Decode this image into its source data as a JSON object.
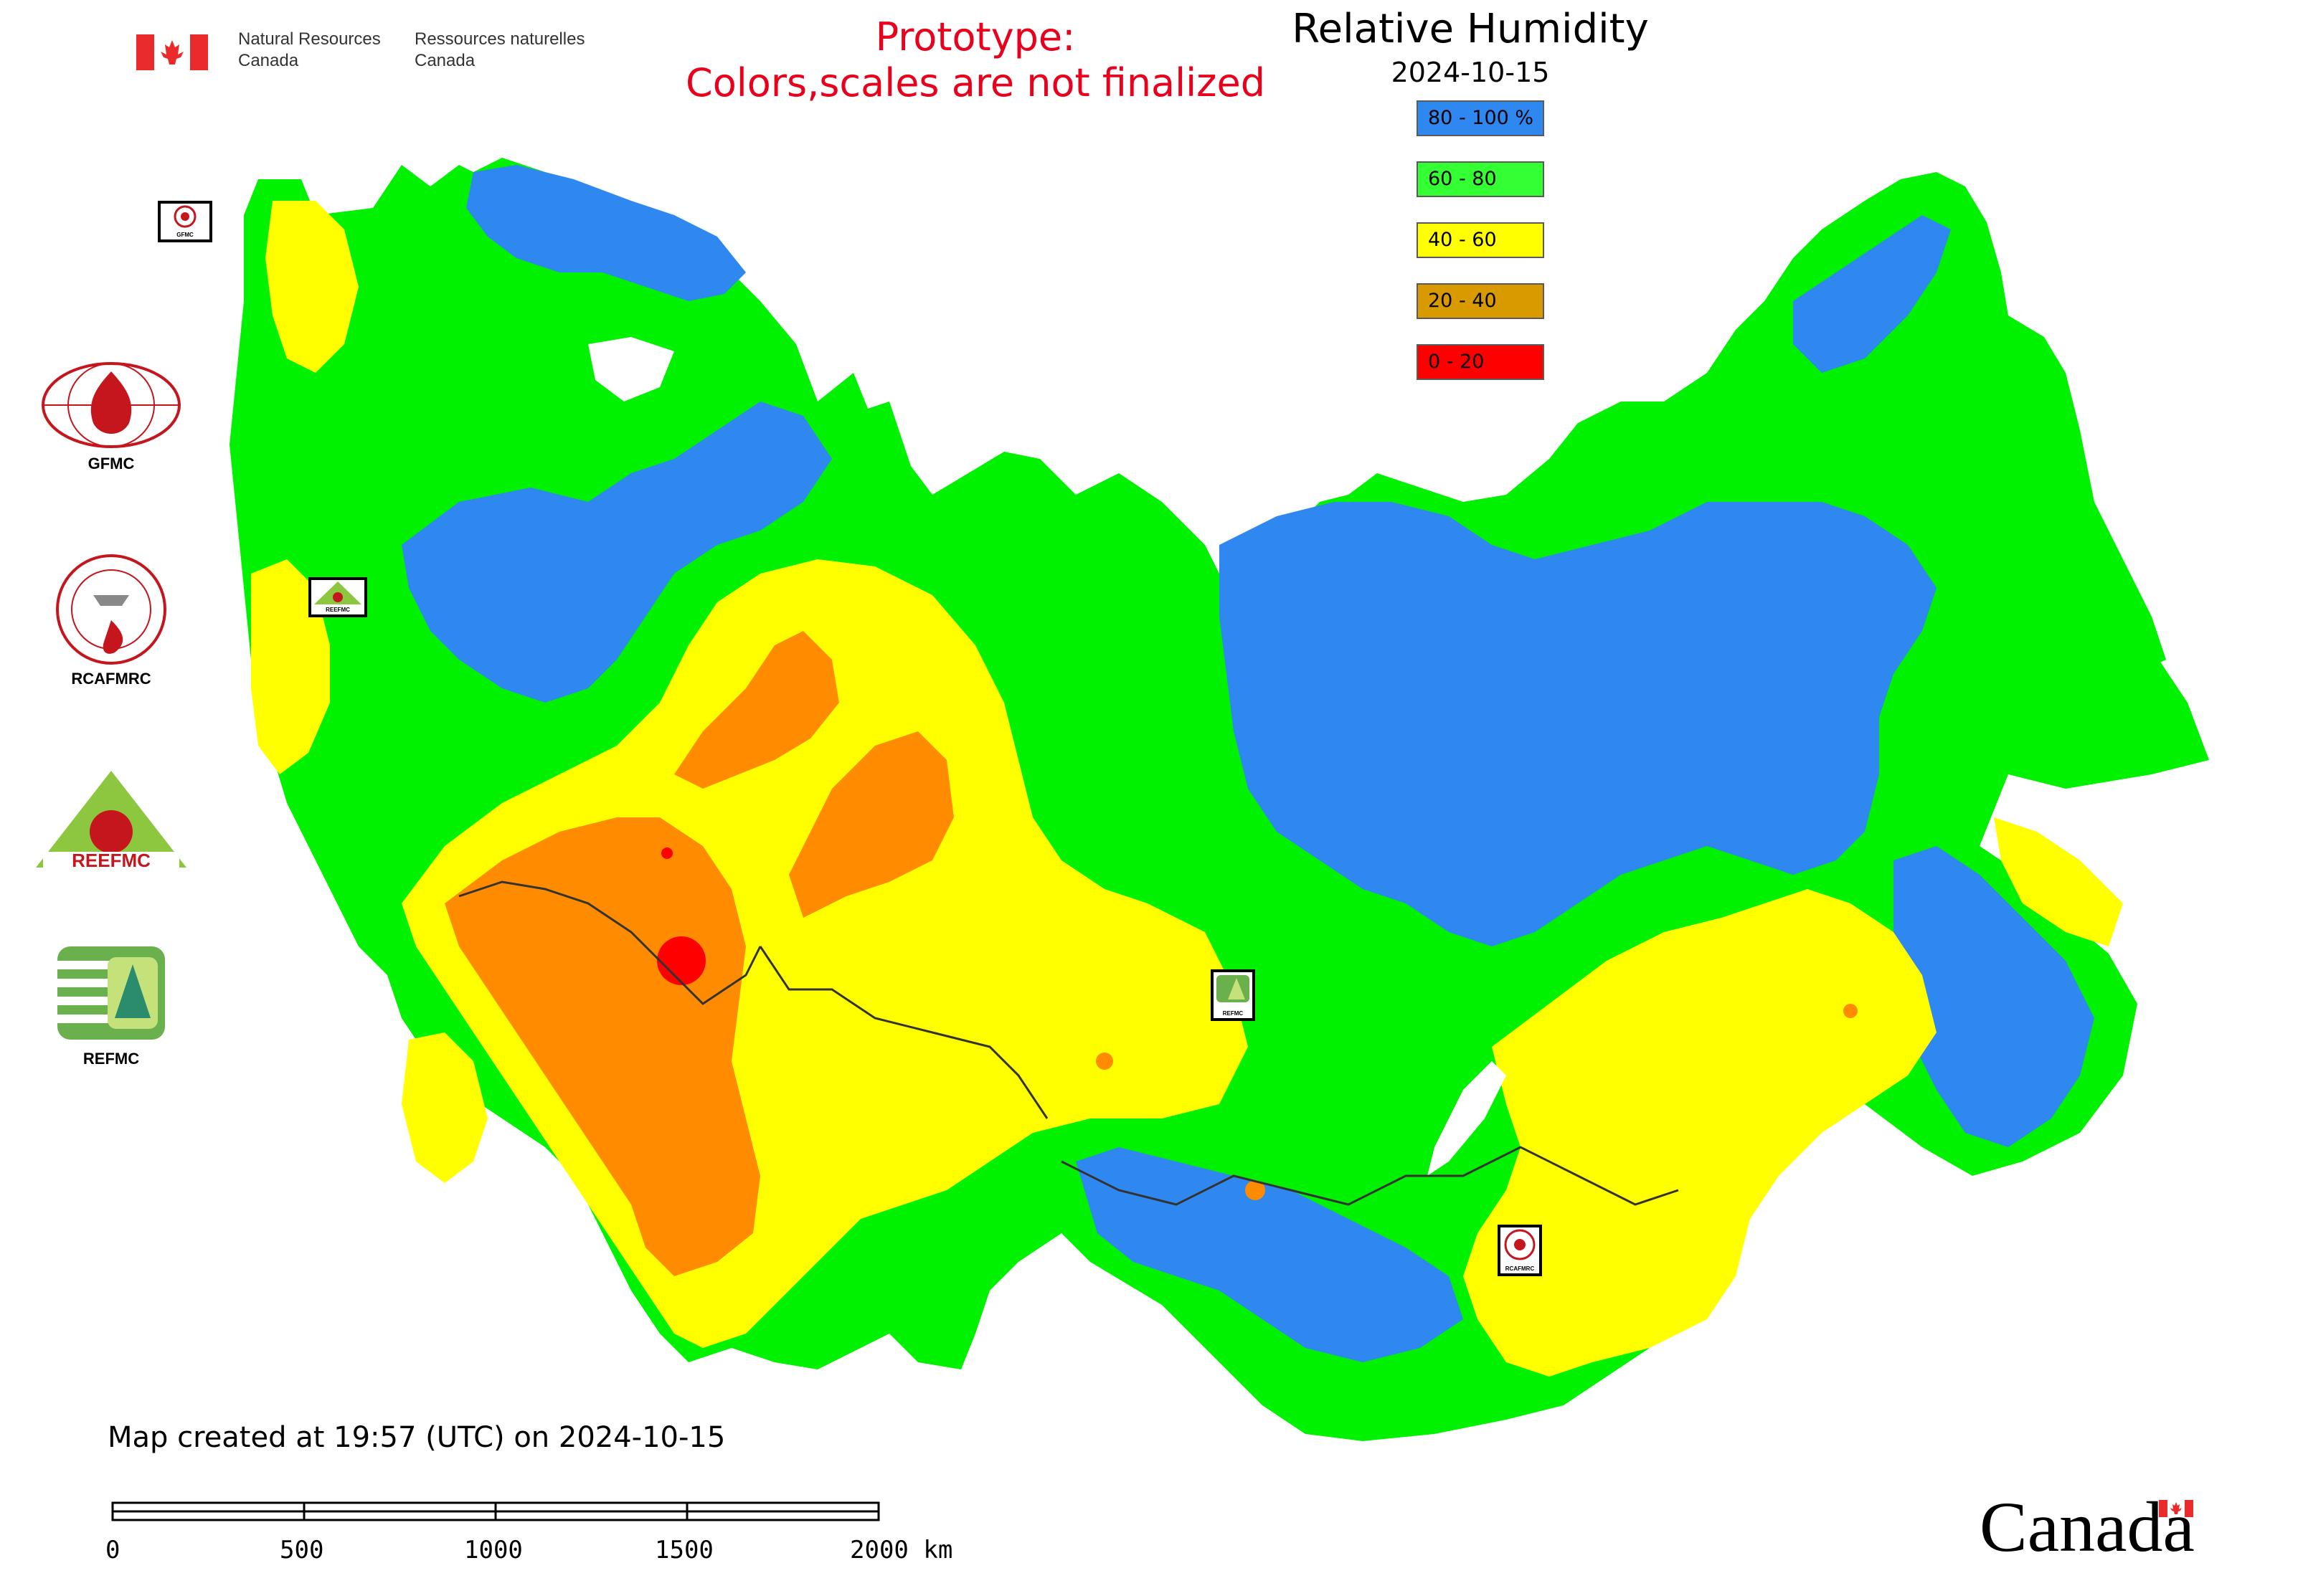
{
  "header": {
    "gov_en_line1": "Natural Resources",
    "gov_en_line2": "Canada",
    "gov_fr_line1": "Ressources naturelles",
    "gov_fr_line2": "Canada",
    "prototype_line1": "Prototype:",
    "prototype_line2": "Colors,scales are not finalized"
  },
  "legend": {
    "title": "Relative Humidity",
    "date": "2024-10-15",
    "items": [
      {
        "label": "80 - 100 %",
        "color": "#2f87f0"
      },
      {
        "label": "60 - 80",
        "color": "#33ff33"
      },
      {
        "label": "40 - 60",
        "color": "#ffff00"
      },
      {
        "label": "20 - 40",
        "color": "#d99a00"
      },
      {
        "label": "0 - 20",
        "color": "#ff0000"
      }
    ]
  },
  "map_colors": {
    "humid_80_100": "#2f87f0",
    "humid_60_80": "#00f200",
    "humid_40_60": "#ffff00",
    "humid_20_40": "#ff8c00",
    "humid_0_20": "#ff0000",
    "water": "#ffffff",
    "borders": "#333333"
  },
  "side_logos": [
    {
      "label": "GFMC",
      "icon": "gfmc-logo-icon"
    },
    {
      "label": "RCAFMRC",
      "icon": "rcafmrc-logo-icon"
    },
    {
      "label": "",
      "icon": "reefmc-logo-icon"
    },
    {
      "label": "REFMC",
      "icon": "refmc-logo-icon"
    }
  ],
  "markers": [
    {
      "label": "GFMC"
    },
    {
      "label": "REEFMC"
    },
    {
      "label": "REFMC"
    },
    {
      "label": "RCAFMRC"
    }
  ],
  "footer": {
    "map_created": "Map created at 19:57 (UTC) on 2024-10-15",
    "scale_labels": [
      "0",
      "500",
      "1000",
      "1500",
      "2000 km"
    ],
    "canada_wordmark": "Canada"
  }
}
